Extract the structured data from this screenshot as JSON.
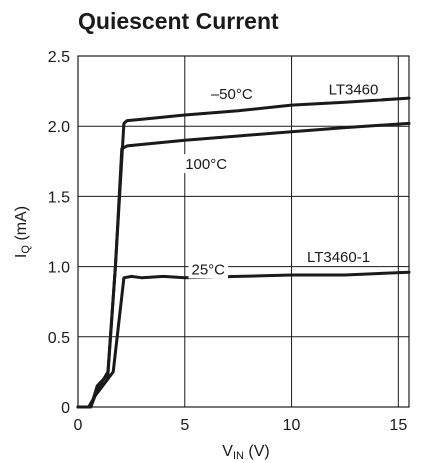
{
  "chart_data": {
    "type": "line",
    "title": "Quiescent Current",
    "ylabel": {
      "main": "I",
      "sub": "Q",
      "rest": " (mA)"
    },
    "xlabel": {
      "main": "V",
      "sub": "IN",
      "rest": " (V)"
    },
    "xlim": [
      0,
      15.5
    ],
    "ylim": [
      0,
      2.5
    ],
    "x_ticks": [
      0,
      5,
      10,
      15
    ],
    "x_tick_labels": [
      "0",
      "5",
      "10",
      "15"
    ],
    "y_ticks": [
      0,
      0.5,
      1.0,
      1.5,
      2.0,
      2.5
    ],
    "y_tick_labels": [
      "0",
      "0.5",
      "1.0",
      "1.5",
      "2.0",
      "2.5"
    ],
    "grid": true,
    "series": [
      {
        "name": "–50°C",
        "x": [
          0,
          0.6,
          0.9,
          1.4,
          1.75,
          2.15,
          2.3,
          3,
          5,
          7.5,
          10,
          12.5,
          15.5
        ],
        "y": [
          0,
          0,
          0.15,
          0.23,
          1.0,
          2.02,
          2.04,
          2.05,
          2.08,
          2.11,
          2.15,
          2.17,
          2.2
        ]
      },
      {
        "name": "100°C",
        "x": [
          0,
          0.6,
          0.9,
          1.4,
          1.75,
          2.05,
          2.3,
          5,
          7.5,
          10,
          12.5,
          15.5
        ],
        "y": [
          0,
          0,
          0.12,
          0.25,
          1.0,
          1.84,
          1.86,
          1.9,
          1.93,
          1.96,
          1.99,
          2.02
        ]
      },
      {
        "name": "25°C",
        "x": [
          0,
          0.5,
          0.8,
          1.3,
          1.65,
          2.15,
          2.5,
          3,
          4,
          5,
          7.5,
          10,
          12.5,
          15.5
        ],
        "y": [
          0,
          0,
          0.08,
          0.18,
          0.25,
          0.92,
          0.93,
          0.92,
          0.93,
          0.92,
          0.93,
          0.94,
          0.94,
          0.96
        ]
      }
    ],
    "annotations": [
      {
        "text": "–50°C",
        "x": 7.2,
        "y": 2.23
      },
      {
        "text": "LT3460",
        "x": 12.9,
        "y": 2.26
      },
      {
        "text": "100°C",
        "x": 6.0,
        "y": 1.73
      },
      {
        "text": "25°C",
        "x": 6.1,
        "y": 0.98
      },
      {
        "text": "LT3460-1",
        "x": 12.2,
        "y": 1.07
      }
    ]
  }
}
